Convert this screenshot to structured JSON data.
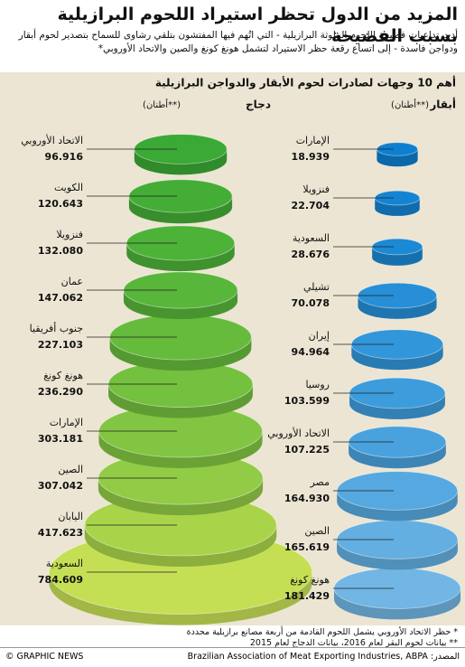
{
  "title": "المزيد من الدول تحظر استيراد اللحوم البرازيلية بسبب الفضيحة",
  "subtitle": "أدت تداعيات فضيحة اللحوم الملوثة البرازيلية - التي اتُهم فيها المفتشون بتلقي رشاوى للسماح بتصدير لحوم أبقار ودواجن فاسدة - إلى اتساع رقعة حظر الاستيراد لتشمل هونغ كونغ والصين والاتحاد الأوروبي*",
  "section_heading": "أهم 10 وجهات لصادرات لحوم الأبقار والدواجن البرازيلية",
  "chart_data": [
    {
      "type": "discs",
      "title": "دجاج",
      "unit": "(أطنان**)",
      "categories": [
        "الاتحاد الأوروبي",
        "الكويت",
        "فنزويلا",
        "عمان",
        "جنوب أفريقيا",
        "هونغ كونغ",
        "الإمارات",
        "الصين",
        "اليابان",
        "السعودية"
      ],
      "values": [
        96.916,
        120.643,
        132.08,
        147.062,
        227.103,
        236.29,
        303.181,
        307.042,
        417.623,
        784.609
      ],
      "value_labels": [
        "96.916",
        "120.643",
        "132.080",
        "147.062",
        "227.103",
        "236.290",
        "303.181",
        "307.042",
        "417.623",
        "784.609"
      ],
      "colors": [
        "#3aa935",
        "#44ad36",
        "#4db238",
        "#58b63a",
        "#66bb3c",
        "#74c03f",
        "#82c542",
        "#92cb45",
        "#a9d44a",
        "#c5df55"
      ]
    },
    {
      "type": "discs",
      "title": "أبقار",
      "unit": "(أطنان**)",
      "categories": [
        "الإمارات",
        "فنزويلا",
        "السعودية",
        "تشيلي",
        "إيران",
        "روسيا",
        "الاتحاد الأوروبي",
        "مصر",
        "الصين",
        "هونغ كونغ"
      ],
      "values": [
        18.939,
        22.704,
        28.676,
        70.078,
        94.964,
        103.599,
        107.225,
        164.93,
        165.619,
        181.429
      ],
      "value_labels": [
        "18.939",
        "22.704",
        "28.676",
        "70.078",
        "94.964",
        "103.599",
        "107.225",
        "164.930",
        "165.619",
        "181.429"
      ],
      "colors": [
        "#0e7fd0",
        "#1484d2",
        "#1c89d4",
        "#268fd7",
        "#3196da",
        "#3d9cdc",
        "#49a2de",
        "#56a9e0",
        "#63afe2",
        "#71b6e4"
      ]
    }
  ],
  "footnotes": [
    "* حظر الاتحاد الأوروبي يشمل اللحوم القادمة من أربعة مصانع برازيلية محددة",
    "** بيانات لحوم البقر لعام 2016، بيانات الدجاج لعام 2015"
  ],
  "source": "المصدر: Brazilian Association of Meat Exporting Industries, ABPA",
  "copyright": "© GRAPHIC NEWS"
}
